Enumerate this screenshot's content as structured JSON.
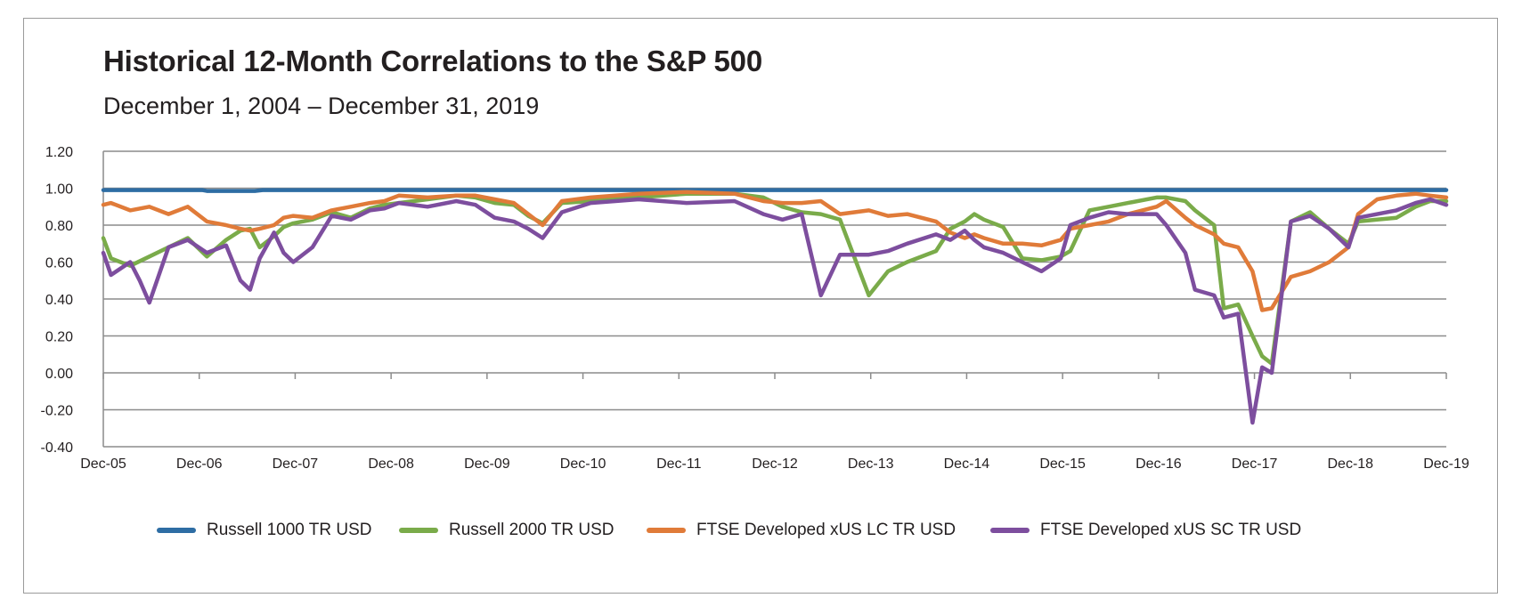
{
  "chart_data": {
    "type": "line",
    "title": "Historical 12-Month Correlations to the S&P 500",
    "subtitle": "December 1, 2004 – December 31, 2019",
    "xlabel": "",
    "ylabel": "",
    "ylim": [
      -0.4,
      1.2
    ],
    "xlim": [
      2005.92,
      2019.92
    ],
    "y_ticks": [
      "1.20",
      "1.00",
      "0.80",
      "0.60",
      "0.40",
      "0.20",
      "0.00",
      "-0.20",
      "-0.40"
    ],
    "y_tick_values": [
      1.2,
      1.0,
      0.8,
      0.6,
      0.4,
      0.2,
      0.0,
      -0.2,
      -0.4
    ],
    "x_ticks": [
      "Dec-05",
      "Dec-06",
      "Dec-07",
      "Dec-08",
      "Dec-09",
      "Dec-10",
      "Dec-11",
      "Dec-12",
      "Dec-13",
      "Dec-14",
      "Dec-15",
      "Dec-16",
      "Dec-17",
      "Dec-18",
      "Dec-19"
    ],
    "x_tick_values": [
      2005.92,
      2006.92,
      2007.92,
      2008.92,
      2009.92,
      2010.92,
      2011.92,
      2012.92,
      2013.92,
      2014.92,
      2015.92,
      2016.92,
      2017.92,
      2018.92,
      2019.92
    ],
    "grid": "horizontal",
    "legend_position": "bottom",
    "series": [
      {
        "name": "Russell 1000 TR USD",
        "color": "#2e6da4",
        "x": [
          2005.92,
          2006.95,
          2007.0,
          2007.5,
          2007.58,
          2019.92
        ],
        "y": [
          0.99,
          0.99,
          0.985,
          0.985,
          0.99,
          0.99
        ]
      },
      {
        "name": "Russell 2000 TR USD",
        "color": "#7aab4a",
        "x": [
          2005.92,
          2006.0,
          2006.2,
          2006.4,
          2006.6,
          2006.8,
          2007.0,
          2007.2,
          2007.35,
          2007.45,
          2007.55,
          2007.7,
          2007.8,
          2007.9,
          2008.1,
          2008.3,
          2008.5,
          2008.7,
          2008.85,
          2009.0,
          2009.3,
          2009.6,
          2009.8,
          2010.0,
          2010.2,
          2010.35,
          2010.5,
          2010.7,
          2011.0,
          2011.5,
          2012.0,
          2012.5,
          2012.8,
          2013.0,
          2013.2,
          2013.4,
          2013.6,
          2013.9,
          2014.1,
          2014.3,
          2014.6,
          2014.75,
          2014.9,
          2015.0,
          2015.1,
          2015.3,
          2015.5,
          2015.7,
          2015.9,
          2016.0,
          2016.2,
          2016.4,
          2016.6,
          2016.9,
          2017.0,
          2017.2,
          2017.3,
          2017.5,
          2017.6,
          2017.75,
          2017.9,
          2018.0,
          2018.1,
          2018.3,
          2018.5,
          2018.7,
          2018.9,
          2019.0,
          2019.2,
          2019.4,
          2019.6,
          2019.75,
          2019.92
        ],
        "y": [
          0.73,
          0.62,
          0.58,
          0.63,
          0.68,
          0.73,
          0.63,
          0.72,
          0.77,
          0.78,
          0.68,
          0.74,
          0.79,
          0.81,
          0.83,
          0.87,
          0.84,
          0.89,
          0.91,
          0.92,
          0.94,
          0.96,
          0.95,
          0.92,
          0.91,
          0.85,
          0.81,
          0.92,
          0.93,
          0.95,
          0.97,
          0.97,
          0.95,
          0.9,
          0.87,
          0.86,
          0.83,
          0.42,
          0.55,
          0.6,
          0.66,
          0.78,
          0.82,
          0.86,
          0.83,
          0.79,
          0.62,
          0.61,
          0.63,
          0.66,
          0.88,
          0.9,
          0.92,
          0.95,
          0.95,
          0.93,
          0.88,
          0.8,
          0.35,
          0.37,
          0.2,
          0.09,
          0.05,
          0.82,
          0.87,
          0.78,
          0.7,
          0.82,
          0.83,
          0.84,
          0.9,
          0.93,
          0.93
        ]
      },
      {
        "name": "FTSE Developed xUS LC TR USD",
        "color": "#e07b39",
        "x": [
          2005.92,
          2006.0,
          2006.2,
          2006.4,
          2006.6,
          2006.8,
          2007.0,
          2007.2,
          2007.35,
          2007.45,
          2007.55,
          2007.7,
          2007.8,
          2007.9,
          2008.1,
          2008.3,
          2008.5,
          2008.7,
          2008.85,
          2009.0,
          2009.3,
          2009.6,
          2009.8,
          2010.0,
          2010.2,
          2010.35,
          2010.5,
          2010.7,
          2011.0,
          2011.5,
          2012.0,
          2012.5,
          2012.8,
          2013.0,
          2013.2,
          2013.4,
          2013.6,
          2013.9,
          2014.1,
          2014.3,
          2014.6,
          2014.75,
          2014.9,
          2015.0,
          2015.1,
          2015.3,
          2015.5,
          2015.7,
          2015.9,
          2016.0,
          2016.2,
          2016.4,
          2016.6,
          2016.9,
          2017.0,
          2017.2,
          2017.3,
          2017.5,
          2017.6,
          2017.75,
          2017.9,
          2018.0,
          2018.1,
          2018.3,
          2018.5,
          2018.7,
          2018.9,
          2019.0,
          2019.2,
          2019.4,
          2019.6,
          2019.75,
          2019.92
        ],
        "y": [
          0.91,
          0.92,
          0.88,
          0.9,
          0.86,
          0.9,
          0.82,
          0.8,
          0.78,
          0.77,
          0.78,
          0.8,
          0.84,
          0.85,
          0.84,
          0.88,
          0.9,
          0.92,
          0.93,
          0.96,
          0.95,
          0.96,
          0.96,
          0.94,
          0.92,
          0.86,
          0.8,
          0.93,
          0.95,
          0.97,
          0.98,
          0.97,
          0.93,
          0.92,
          0.92,
          0.93,
          0.86,
          0.88,
          0.85,
          0.86,
          0.82,
          0.76,
          0.73,
          0.75,
          0.73,
          0.7,
          0.7,
          0.69,
          0.72,
          0.78,
          0.8,
          0.82,
          0.86,
          0.9,
          0.93,
          0.84,
          0.8,
          0.75,
          0.7,
          0.68,
          0.55,
          0.34,
          0.35,
          0.52,
          0.55,
          0.6,
          0.68,
          0.86,
          0.94,
          0.96,
          0.97,
          0.96,
          0.95
        ]
      },
      {
        "name": "FTSE Developed xUS SC TR USD",
        "color": "#7d4e9e",
        "x": [
          2005.92,
          2006.0,
          2006.2,
          2006.3,
          2006.4,
          2006.6,
          2006.8,
          2007.0,
          2007.2,
          2007.35,
          2007.45,
          2007.55,
          2007.7,
          2007.8,
          2007.9,
          2008.1,
          2008.3,
          2008.5,
          2008.7,
          2008.85,
          2009.0,
          2009.3,
          2009.6,
          2009.8,
          2010.0,
          2010.2,
          2010.35,
          2010.5,
          2010.7,
          2011.0,
          2011.5,
          2012.0,
          2012.5,
          2012.8,
          2013.0,
          2013.2,
          2013.4,
          2013.6,
          2013.9,
          2014.1,
          2014.3,
          2014.6,
          2014.75,
          2014.9,
          2015.0,
          2015.1,
          2015.3,
          2015.5,
          2015.7,
          2015.9,
          2016.0,
          2016.2,
          2016.4,
          2016.6,
          2016.9,
          2017.0,
          2017.2,
          2017.3,
          2017.5,
          2017.6,
          2017.75,
          2017.9,
          2018.0,
          2018.1,
          2018.3,
          2018.5,
          2018.7,
          2018.9,
          2019.0,
          2019.2,
          2019.4,
          2019.6,
          2019.75,
          2019.92
        ],
        "y": [
          0.65,
          0.53,
          0.6,
          0.5,
          0.38,
          0.68,
          0.72,
          0.65,
          0.69,
          0.5,
          0.45,
          0.62,
          0.76,
          0.65,
          0.6,
          0.68,
          0.85,
          0.83,
          0.88,
          0.89,
          0.92,
          0.9,
          0.93,
          0.91,
          0.84,
          0.82,
          0.78,
          0.73,
          0.87,
          0.92,
          0.94,
          0.92,
          0.93,
          0.86,
          0.83,
          0.86,
          0.42,
          0.64,
          0.64,
          0.66,
          0.7,
          0.75,
          0.72,
          0.77,
          0.72,
          0.68,
          0.65,
          0.6,
          0.55,
          0.62,
          0.8,
          0.84,
          0.87,
          0.86,
          0.86,
          0.8,
          0.65,
          0.45,
          0.42,
          0.3,
          0.32,
          -0.27,
          0.03,
          0.0,
          0.82,
          0.85,
          0.78,
          0.68,
          0.84,
          0.86,
          0.88,
          0.92,
          0.94,
          0.91
        ]
      }
    ]
  }
}
